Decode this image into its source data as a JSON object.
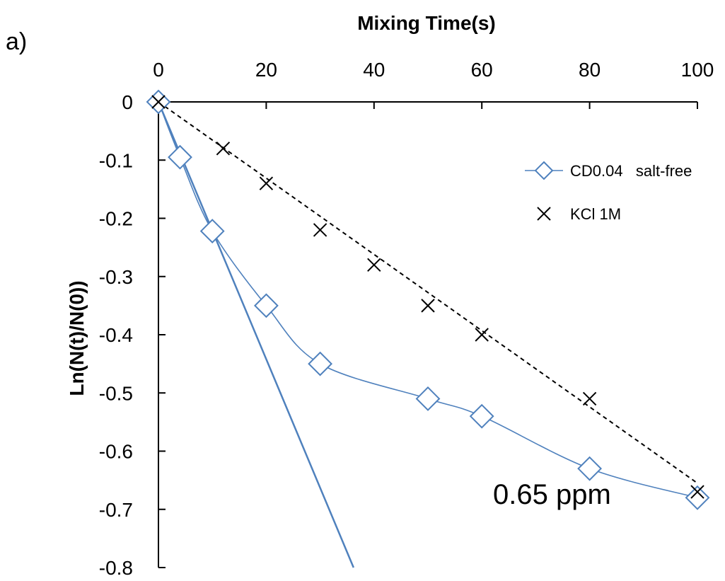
{
  "panel_label": "a)",
  "annotation": "0.65 ppm",
  "chart_data": {
    "type": "scatter",
    "title": "",
    "xlabel": "Mixing Time(s)",
    "ylabel": "Ln(N(t)/N(0))",
    "xlim": [
      0,
      100
    ],
    "ylim": [
      -0.8,
      0
    ],
    "x_ticks": [
      "0",
      "20",
      "40",
      "60",
      "80",
      "100"
    ],
    "y_ticks": [
      "0",
      "-0.1",
      "-0.2",
      "-0.3",
      "-0.4",
      "-0.5",
      "-0.6",
      "-0.7",
      "-0.8"
    ],
    "x_axis_position": "top",
    "grid": false,
    "legend_position": "top-right",
    "series": [
      {
        "name": "CD0.04   salt-free",
        "marker": "diamond",
        "line": "smooth",
        "color": "#4F81BD",
        "x": [
          0,
          4,
          10,
          20,
          30,
          50,
          60,
          80,
          100
        ],
        "y": [
          0,
          -0.095,
          -0.222,
          -0.35,
          -0.45,
          -0.51,
          -0.54,
          -0.63,
          -0.68
        ]
      },
      {
        "name": "KCl 1M",
        "marker": "x",
        "line": "none",
        "color": "#000000",
        "x": [
          0,
          12,
          20,
          30,
          40,
          50,
          60,
          80,
          100
        ],
        "y": [
          0,
          -0.08,
          -0.14,
          -0.22,
          -0.28,
          -0.35,
          -0.4,
          -0.51,
          -0.67
        ]
      }
    ],
    "fit_lines": [
      {
        "style": "dashed",
        "color": "#000000",
        "x": [
          0,
          100
        ],
        "y": [
          0,
          -0.655
        ]
      },
      {
        "style": "solid",
        "color": "#4F81BD",
        "x": [
          0,
          36.2
        ],
        "y": [
          0,
          -0.8
        ]
      }
    ]
  }
}
